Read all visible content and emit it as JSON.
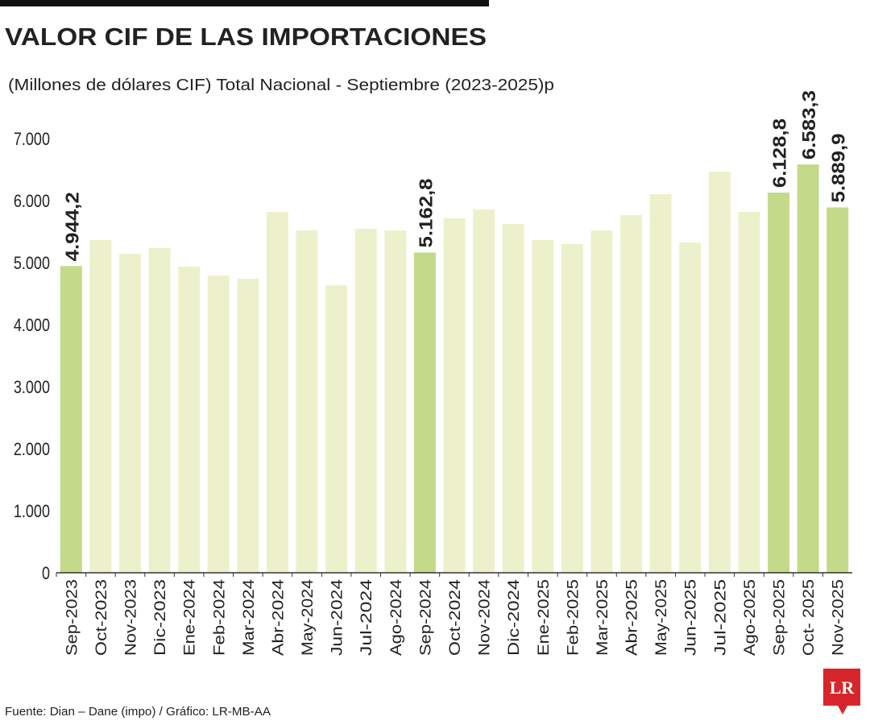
{
  "chart_data": {
    "type": "bar",
    "title": "VALOR CIF DE LAS IMPORTACIONES",
    "subtitle": "(Millones de dólares CIF) Total Nacional - Septiembre (2023-2025)p",
    "source": "Fuente: Dian – Dane (impo) / Gráfico: LR-MB-AA",
    "logo": "LR",
    "categories": [
      "Sep-2023",
      "Oct-2023",
      "Nov-2023",
      "Dic-2023",
      "Ene-2024",
      "Feb-2024",
      "Mar-2024",
      "Abr-2024",
      "May-2024",
      "Jun-2024",
      "Jul-2024",
      "Ago-2024",
      "Sep-2024",
      "Oct-2024",
      "Nov-2024",
      "Dic-2024",
      "Ene-2025",
      "Feb-2025",
      "Mar-2025",
      "Abr-2025",
      "May-2025",
      "Jun-2025",
      "Jul-2025",
      "Ago-2025",
      "Sep-2025",
      "Oct- 2025",
      "Nov-2025"
    ],
    "values": [
      4944.2,
      5364,
      5143,
      5234,
      4935,
      4792,
      4740,
      5818,
      5519,
      4636,
      5545,
      5519,
      5162.8,
      5714,
      5857,
      5623,
      5364,
      5299,
      5519,
      5766,
      6104,
      5325,
      6468,
      5818,
      6128.8,
      6583.3,
      5889.9
    ],
    "value_labels": [
      "4.944,2",
      null,
      null,
      null,
      null,
      null,
      null,
      null,
      null,
      null,
      null,
      null,
      "5.162,8",
      null,
      null,
      null,
      null,
      null,
      null,
      null,
      null,
      null,
      null,
      null,
      "6.128,8",
      "6.583,3",
      "5.889,9"
    ],
    "color": "#edf1cb",
    "highlight_color": "#c4d98a",
    "ylim": [
      0,
      7000
    ],
    "yticks": [
      0,
      {
        "value": 1000,
        "label": "1.000"
      },
      {
        "value": 2000,
        "label": "2.000"
      },
      {
        "value": 3000,
        "label": "3.000"
      },
      {
        "value": 4000,
        "label": "4.000"
      },
      {
        "value": 5000,
        "label": "5.000"
      },
      {
        "value": 6000,
        "label": "6.000"
      },
      {
        "value": 7000,
        "label": "7.000"
      }
    ]
  }
}
